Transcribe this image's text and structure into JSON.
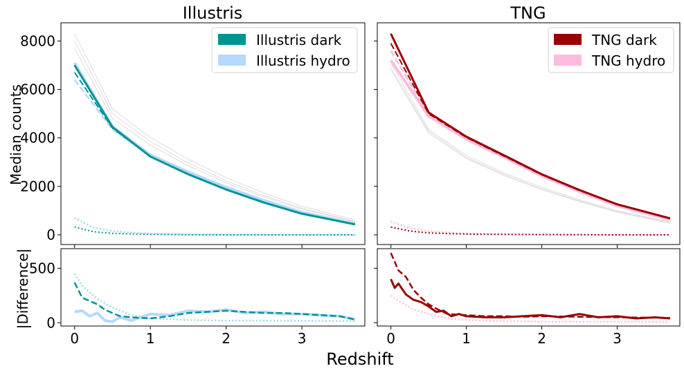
{
  "figure": {
    "xlabel": "Redshift",
    "ylabel_top": "Median counts",
    "ylabel_bottom": "|Difference|"
  },
  "chart_data": [
    {
      "type": "line",
      "title": "Illustris",
      "xlim": [
        -0.18,
        3.83
      ],
      "ylim": [
        -400,
        8750
      ],
      "x_ticks": [
        0,
        1,
        2,
        3
      ],
      "y_ticks": [
        0,
        2000,
        4000,
        6000,
        8000
      ],
      "legend": {
        "placement": "top-right",
        "entries": [
          {
            "label": "Illustris dark",
            "color": "#009393"
          },
          {
            "label": "Illustris hydro",
            "color": "#b5d9ff"
          }
        ]
      },
      "series": [
        {
          "role": "grey",
          "color": "#dcdcdc",
          "style": "solid",
          "width": 1,
          "x": [
            0,
            0.5,
            1,
            1.5,
            2,
            2.5,
            3,
            3.7
          ],
          "values": [
            8300,
            5200,
            4020,
            3120,
            2360,
            1720,
            1180,
            620
          ]
        },
        {
          "role": "grey",
          "color": "#dcdcdc",
          "style": "solid",
          "width": 1,
          "x": [
            0,
            0.5,
            1,
            1.5,
            2,
            2.5,
            3,
            3.7
          ],
          "values": [
            8000,
            5000,
            3850,
            2960,
            2230,
            1620,
            1100,
            560
          ]
        },
        {
          "role": "grey",
          "color": "#dcdcdc",
          "style": "solid",
          "width": 1,
          "x": [
            0,
            0.5,
            1,
            1.5,
            2,
            2.5,
            3,
            3.7
          ],
          "values": [
            7700,
            4800,
            3700,
            2850,
            2150,
            1560,
            1060,
            540
          ]
        },
        {
          "role": "hydro",
          "color": "#b5d9ff",
          "style": "solid",
          "width": 4,
          "x": [
            0,
            0.5,
            1,
            1.5,
            2,
            2.5,
            3,
            3.7
          ],
          "values": [
            7100,
            4470,
            3300,
            2590,
            1960,
            1420,
            930,
            460
          ]
        },
        {
          "role": "hydro-dashed",
          "color": "#b5d9ff",
          "style": "dashed",
          "width": 2.5,
          "x": [
            0,
            0.5,
            1,
            1.5,
            2,
            2.5,
            3,
            3.7
          ],
          "values": [
            6400,
            4350,
            3250,
            2550,
            1930,
            1400,
            920,
            450
          ]
        },
        {
          "role": "dark",
          "color": "#009393",
          "style": "solid",
          "width": 3,
          "x": [
            0,
            0.5,
            1,
            1.5,
            2,
            2.5,
            3,
            3.7
          ],
          "values": [
            7000,
            4450,
            3230,
            2500,
            1870,
            1330,
            870,
            430
          ]
        },
        {
          "role": "dark-dashed",
          "color": "#009393",
          "style": "dashed",
          "width": 2,
          "x": [
            0,
            0.5,
            1,
            1.5,
            2,
            2.5,
            3,
            3.7
          ],
          "values": [
            6700,
            4400,
            3230,
            2500,
            1870,
            1330,
            870,
            430
          ]
        },
        {
          "role": "hydro-dotted",
          "color": "#9cd6e8",
          "style": "dotted",
          "width": 2.5,
          "x": [
            0,
            0.25,
            0.5,
            1,
            1.5,
            2,
            2.5,
            3,
            3.7
          ],
          "values": [
            700,
            300,
            150,
            50,
            20,
            10,
            5,
            0,
            0
          ]
        },
        {
          "role": "dark-dotted",
          "color": "#009393",
          "style": "dotted",
          "width": 2,
          "x": [
            0,
            0.25,
            0.5,
            1,
            1.5,
            2,
            2.5,
            3,
            3.7
          ],
          "values": [
            320,
            130,
            60,
            20,
            5,
            0,
            0,
            0,
            0
          ]
        }
      ]
    },
    {
      "type": "line",
      "title": "TNG",
      "xlim": [
        -0.18,
        3.83
      ],
      "ylim": [
        -400,
        8750
      ],
      "x_ticks": [
        0,
        1,
        2,
        3
      ],
      "y_ticks": [
        0,
        2000,
        4000,
        6000,
        8000
      ],
      "legend": {
        "placement": "top-right",
        "entries": [
          {
            "label": "TNG dark",
            "color": "#990000"
          },
          {
            "label": "TNG hydro",
            "color": "#ffbbdd"
          }
        ]
      },
      "series": [
        {
          "role": "grey",
          "color": "#dcdcdc",
          "style": "solid",
          "width": 1,
          "x": [
            0,
            0.5,
            1,
            1.5,
            2,
            2.5,
            3,
            3.7
          ],
          "values": [
            6800,
            4200,
            3150,
            2450,
            1860,
            1370,
            930,
            480
          ]
        },
        {
          "role": "grey",
          "color": "#dcdcdc",
          "style": "solid",
          "width": 1,
          "x": [
            0,
            0.5,
            1,
            1.5,
            2,
            2.5,
            3,
            3.7
          ],
          "values": [
            7100,
            4350,
            3280,
            2560,
            1960,
            1450,
            1000,
            540
          ]
        },
        {
          "role": "grey",
          "color": "#dcdcdc",
          "style": "solid",
          "width": 1,
          "x": [
            0,
            0.5,
            1,
            1.5,
            2,
            2.5,
            3,
            3.7
          ],
          "values": [
            6900,
            4280,
            3200,
            2500,
            1900,
            1400,
            960,
            500
          ]
        },
        {
          "role": "hydro",
          "color": "#ffbbdd",
          "style": "solid",
          "width": 4,
          "x": [
            0,
            0.5,
            1,
            1.5,
            2,
            2.5,
            3,
            3.7
          ],
          "values": [
            7200,
            4900,
            3950,
            3200,
            2430,
            1780,
            1200,
            630
          ]
        },
        {
          "role": "hydro-dashed",
          "color": "#ffbbdd",
          "style": "dashed",
          "width": 2.5,
          "x": [
            0,
            0.5,
            1,
            1.5,
            2,
            2.5,
            3,
            3.7
          ],
          "values": [
            7600,
            4950,
            3970,
            3210,
            2440,
            1790,
            1210,
            640
          ]
        },
        {
          "role": "dark",
          "color": "#990000",
          "style": "solid",
          "width": 3,
          "x": [
            0,
            0.5,
            1,
            1.5,
            2,
            2.5,
            3,
            3.7
          ],
          "values": [
            8300,
            5050,
            4050,
            3280,
            2500,
            1850,
            1260,
            680
          ]
        },
        {
          "role": "dark-dashed",
          "color": "#990000",
          "style": "dashed",
          "width": 2,
          "x": [
            0,
            0.5,
            1,
            1.5,
            2,
            2.5,
            3,
            3.7
          ],
          "values": [
            7900,
            5000,
            4020,
            3250,
            2480,
            1830,
            1250,
            670
          ]
        },
        {
          "role": "hydro-dotted",
          "color": "#ffbbdd",
          "style": "dotted",
          "width": 2.5,
          "x": [
            0,
            0.25,
            0.5,
            1,
            1.5,
            2,
            2.5,
            3,
            3.7
          ],
          "values": [
            550,
            280,
            150,
            60,
            30,
            15,
            10,
            5,
            0
          ]
        },
        {
          "role": "dark-dotted",
          "color": "#990000",
          "style": "dotted",
          "width": 2,
          "x": [
            0,
            0.25,
            0.5,
            1,
            1.5,
            2,
            2.5,
            3,
            3.7
          ],
          "values": [
            320,
            160,
            80,
            30,
            15,
            10,
            5,
            0,
            0
          ]
        }
      ]
    },
    {
      "type": "line",
      "title": "",
      "xlim": [
        -0.18,
        3.83
      ],
      "ylim": [
        -30,
        680
      ],
      "x_ticks": [
        0,
        1,
        2,
        3
      ],
      "y_ticks": [
        0,
        500
      ],
      "series": [
        {
          "role": "hydro-dotted",
          "color": "#9cd6e8",
          "style": "dotted",
          "width": 2.5,
          "x": [
            0,
            0.1,
            0.3,
            0.5,
            0.75,
            1,
            1.5,
            2,
            2.5,
            3,
            3.7
          ],
          "values": [
            450,
            340,
            220,
            140,
            70,
            40,
            25,
            20,
            20,
            18,
            15
          ]
        },
        {
          "role": "hydro",
          "color": "#b5d9ff",
          "style": "solid",
          "width": 4,
          "x": [
            0,
            0.1,
            0.2,
            0.3,
            0.4,
            0.5,
            0.6,
            0.75,
            1,
            1.25,
            1.5,
            1.75,
            2,
            2.25,
            2.5,
            2.75,
            3,
            3.25,
            3.5,
            3.7
          ],
          "values": [
            100,
            110,
            60,
            90,
            20,
            10,
            50,
            20,
            80,
            70,
            110,
            100,
            120,
            90,
            100,
            80,
            80,
            70,
            60,
            30
          ]
        },
        {
          "role": "dark-dashed",
          "color": "#009393",
          "style": "dashed",
          "width": 2.5,
          "x": [
            0,
            0.1,
            0.2,
            0.3,
            0.4,
            0.5,
            0.6,
            0.75,
            1,
            1.25,
            1.5,
            1.75,
            2,
            2.25,
            2.5,
            2.75,
            3,
            3.25,
            3.5,
            3.7
          ],
          "values": [
            370,
            230,
            200,
            170,
            120,
            90,
            60,
            50,
            40,
            60,
            90,
            100,
            110,
            100,
            90,
            90,
            80,
            70,
            60,
            30
          ]
        }
      ]
    },
    {
      "type": "line",
      "title": "",
      "xlim": [
        -0.18,
        3.83
      ],
      "ylim": [
        -30,
        680
      ],
      "x_ticks": [
        0,
        1,
        2,
        3
      ],
      "y_ticks": [
        0,
        500
      ],
      "series": [
        {
          "role": "hydro-dotted",
          "color": "#ffbbdd",
          "style": "dotted",
          "width": 2.5,
          "x": [
            0,
            0.1,
            0.3,
            0.5,
            0.75,
            1,
            1.5,
            2,
            2.5,
            3,
            3.7
          ],
          "values": [
            250,
            200,
            120,
            80,
            40,
            25,
            15,
            10,
            10,
            8,
            5
          ]
        },
        {
          "role": "dark-dashed",
          "color": "#990000",
          "style": "dashed",
          "width": 2.5,
          "x": [
            0,
            0.05,
            0.1,
            0.2,
            0.3,
            0.4,
            0.5,
            0.6,
            0.75,
            1,
            1.25,
            1.5,
            1.75,
            2,
            2.5,
            3,
            3.7
          ],
          "values": [
            640,
            560,
            480,
            420,
            300,
            230,
            170,
            130,
            80,
            70,
            60,
            60,
            55,
            60,
            55,
            50,
            45
          ]
        },
        {
          "role": "dark",
          "color": "#990000",
          "style": "solid",
          "width": 3,
          "x": [
            0,
            0.05,
            0.1,
            0.2,
            0.3,
            0.4,
            0.5,
            0.6,
            0.7,
            0.8,
            0.9,
            1,
            1.25,
            1.5,
            1.75,
            2,
            2.25,
            2.5,
            2.75,
            3,
            3.25,
            3.5,
            3.7
          ],
          "values": [
            400,
            320,
            360,
            260,
            210,
            190,
            150,
            100,
            110,
            60,
            80,
            60,
            50,
            50,
            60,
            70,
            50,
            80,
            50,
            60,
            40,
            50,
            40
          ]
        }
      ]
    }
  ]
}
